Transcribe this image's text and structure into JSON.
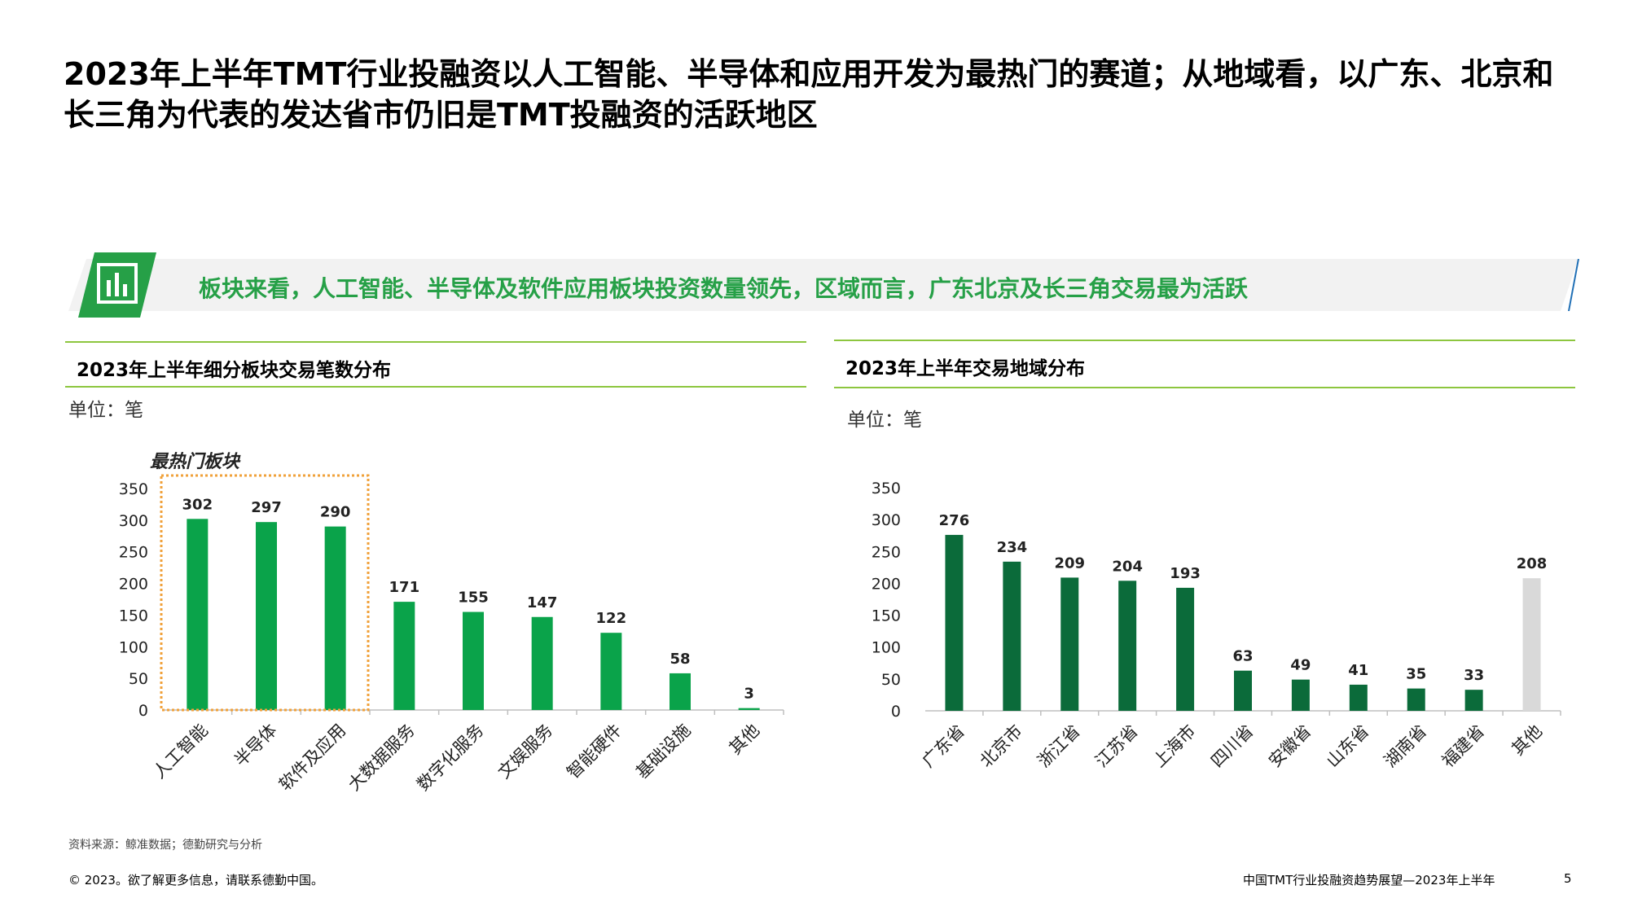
{
  "page": {
    "title": "2023年上半年TMT行业投融资以人工智能、半导体和应用开发为最热门的赛道；从地域看，以广东、北京和长三角为代表的发达省市仍旧是TMT投融资的活跃地区",
    "banner_text": "板块来看，人工智能、半导体及软件应用板块投资数量领先，区域而言，广东北京及长三角交易最为活跃",
    "source": "资料来源：鲸准数据；德勤研究与分析",
    "footer_left": "© 2023。欲了解更多信息，请联系德勤中国。",
    "footer_right": "中国TMT行业投融资趋势展望—2023年上半年",
    "page_number": "5"
  },
  "colors": {
    "brand_green": "#26a047",
    "bar_green": "#0aa34a",
    "bar_dark_green": "#0b6b3a",
    "bar_grey": "#d9d9d9",
    "rule_green": "#8dc63f",
    "highlight_orange": "#f0a13a",
    "banner_bg": "#f2f2f2",
    "slash_blue": "#1f6fb5"
  },
  "chart_data": [
    {
      "type": "bar",
      "title": "2023年上半年细分板块交易笔数分布",
      "unit_label": "单位：笔",
      "highlight_label": "最热门板块",
      "highlight_count": 3,
      "categories": [
        "人工智能",
        "半导体",
        "软件及应用",
        "大数据服务",
        "数字化服务",
        "文娱服务",
        "智能硬件",
        "基础设施",
        "其他"
      ],
      "values": [
        302,
        297,
        290,
        171,
        155,
        147,
        122,
        58,
        3
      ],
      "yticks": [
        0,
        50,
        100,
        150,
        200,
        250,
        300,
        350
      ],
      "ylim": [
        0,
        350
      ],
      "grid": false
    },
    {
      "type": "bar",
      "title": "2023年上半年交易地域分布",
      "unit_label": "单位：笔",
      "categories": [
        "广东省",
        "北京市",
        "浙江省",
        "江苏省",
        "上海市",
        "四川省",
        "安徽省",
        "山东省",
        "湖南省",
        "福建省",
        "其他"
      ],
      "values": [
        276,
        234,
        209,
        204,
        193,
        63,
        49,
        41,
        35,
        33,
        208
      ],
      "yticks": [
        0,
        50,
        100,
        150,
        200,
        250,
        300,
        350
      ],
      "ylim": [
        0,
        350
      ],
      "grid": false
    }
  ]
}
